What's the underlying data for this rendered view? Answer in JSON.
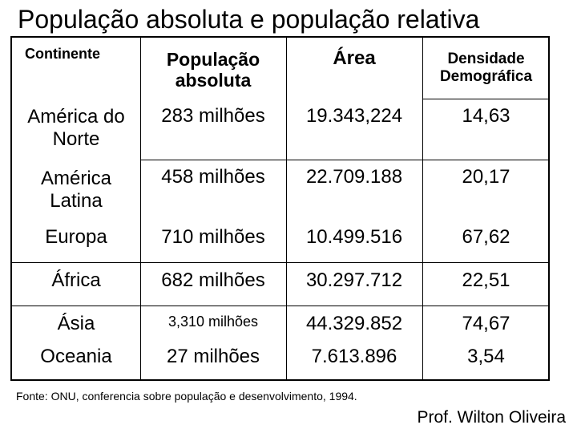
{
  "title": "População absoluta e população relativa",
  "table": {
    "headers": {
      "continent": "Continente",
      "population": "População absoluta",
      "area": "Área",
      "density": "Densidade Demográfica"
    },
    "rows": [
      {
        "continent": "América do Norte",
        "population": "283 milhões",
        "area": "19.343,224",
        "density": "14,63"
      },
      {
        "continent": "América Latina",
        "population": "458 milhões",
        "area": "22.709.188",
        "density": "20,17"
      },
      {
        "continent": "Europa",
        "population": "710 milhões",
        "area": "10.499.516",
        "density": "67,62"
      },
      {
        "continent": "África",
        "population": "682 milhões",
        "area": "30.297.712",
        "density": "22,51"
      },
      {
        "continent": "Ásia",
        "population": "3,310 milhões",
        "area": "44.329.852",
        "density": "74,67"
      },
      {
        "continent": "Oceania",
        "population": "27 milhões",
        "area": "7.613.896",
        "density": "3,54"
      }
    ]
  },
  "source_note": "Fonte: ONU, conferencia sobre população e desenvolvimento, 1994.",
  "author": "Prof. Wilton Oliveira"
}
